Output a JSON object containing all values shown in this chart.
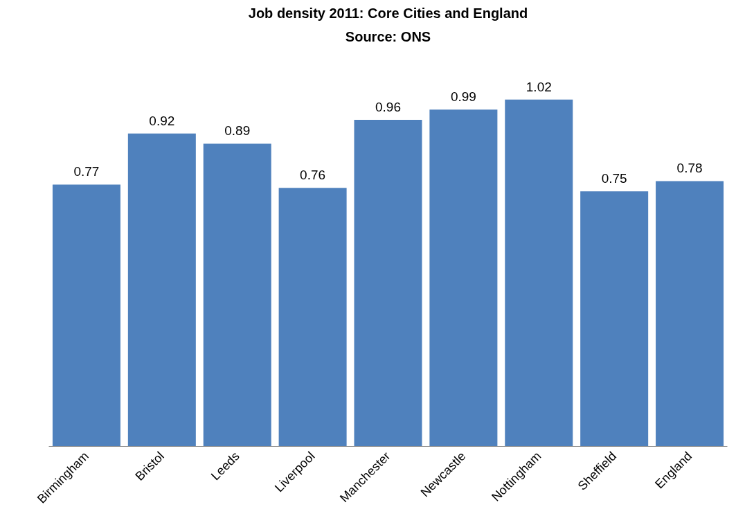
{
  "chart_data": {
    "type": "bar",
    "title": "Job density 2011: Core Cities and England",
    "subtitle": "Source: ONS",
    "categories": [
      "Birmingham",
      "Bristol",
      "Leeds",
      "Liverpool",
      "Manchester",
      "Newcastle",
      "Nottingham",
      "Sheffield",
      "England"
    ],
    "values": [
      0.77,
      0.92,
      0.89,
      0.76,
      0.96,
      0.99,
      1.02,
      0.75,
      0.78
    ],
    "color": "#4f81bd",
    "data_labels": true,
    "tick_labels": "x"
  }
}
